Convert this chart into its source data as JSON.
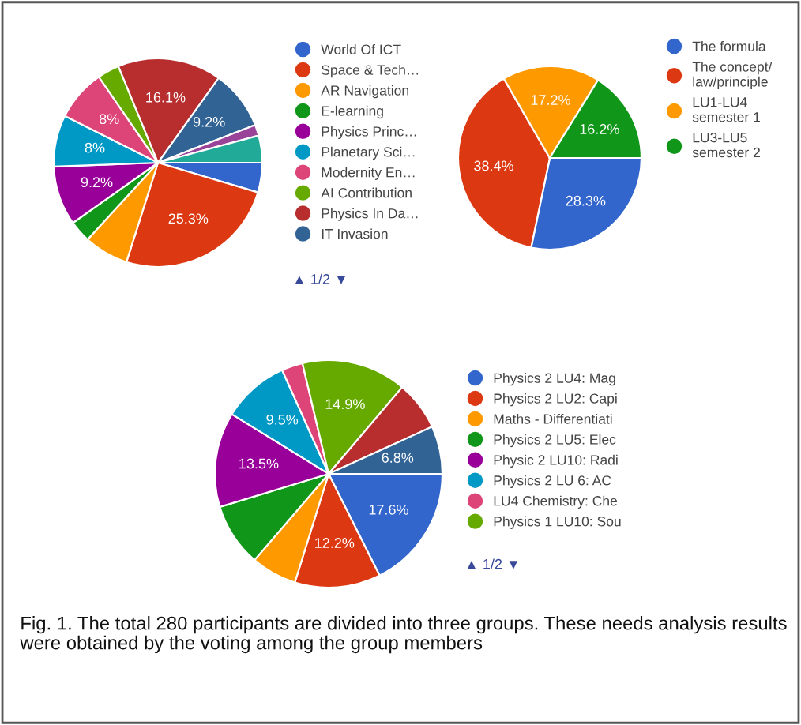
{
  "chart_data": [
    {
      "type": "pie",
      "categories": [
        "World Of ICT",
        "Space & Tech…",
        "AR Navigation",
        "E-learning",
        "Physics Princ…",
        "Planetary Sci…",
        "Modernity En…",
        "AI Contribution",
        "Physics In Da…",
        "IT Invasion",
        null,
        null
      ],
      "values": [
        4.6,
        25.3,
        6.9,
        3.4,
        9.2,
        8,
        8,
        3.4,
        16.1,
        9.2,
        1.7,
        4.2
      ],
      "value_labels": [
        null,
        "25.3%",
        null,
        null,
        "9.2%",
        "8%",
        "8%",
        null,
        "16.1%",
        "9.2%",
        null,
        null
      ],
      "colors": [
        "#3366cc",
        "#dc3912",
        "#ff9900",
        "#109618",
        "#990099",
        "#0099c6",
        "#dd4477",
        "#66aa00",
        "#b82e2e",
        "#316395",
        "#994499",
        "#22aa99"
      ],
      "legend": "right",
      "annotations": [
        "▲ 1/2 ▼"
      ]
    },
    {
      "type": "pie",
      "categories": [
        "The formula",
        "The concept/\nlaw/principle",
        "LU1-LU4\nsemester 1",
        "LU3-LU5\nsemester 2"
      ],
      "values": [
        28.3,
        38.4,
        17.2,
        16.2
      ],
      "value_labels": [
        "28.3%",
        "38.4%",
        "17.2%",
        "16.2%"
      ],
      "colors": [
        "#3366cc",
        "#dc3912",
        "#ff9900",
        "#109618"
      ],
      "legend": "right"
    },
    {
      "type": "pie",
      "categories": [
        "Physics 2 LU4: Mag",
        "Physics 2 LU2: Capi",
        "Maths - Differentiati",
        "Physics 2 LU5: Elec",
        "Physic 2 LU10: Radi",
        "Physics 2 LU 6: AC",
        "LU4 Chemistry: Che",
        "Physics 1 LU10: Sou",
        null,
        null
      ],
      "values": [
        17.6,
        12.2,
        6.5,
        9,
        13.5,
        9.5,
        3,
        14.9,
        7,
        6.8
      ],
      "value_labels": [
        "17.6%",
        "12.2%",
        null,
        null,
        "13.5%",
        "9.5%",
        null,
        "14.9%",
        null,
        "6.8%"
      ],
      "colors": [
        "#3366cc",
        "#dc3912",
        "#ff9900",
        "#109618",
        "#990099",
        "#0099c6",
        "#dd4477",
        "#66aa00",
        "#b82e2e",
        "#316395"
      ],
      "legend": "right",
      "annotations": [
        "▲ 1/2 ▼",
        "Fig. 1. The total 280 participants are divided into three groups. These needs analysis results were obtained by the voting among the group members"
      ]
    }
  ]
}
